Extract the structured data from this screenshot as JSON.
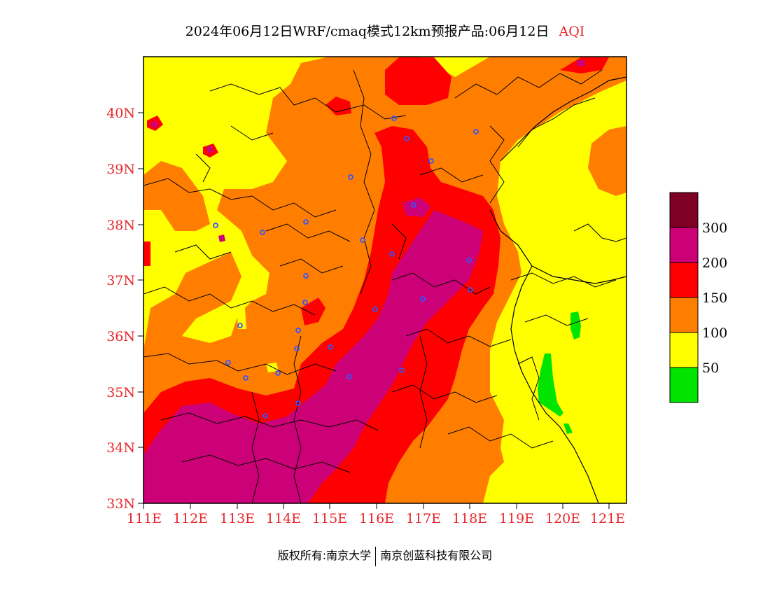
{
  "title": {
    "main": "2024年06月12日WRF/cmaq模式12km预报产品:06月12日",
    "variable": "AQI"
  },
  "axes": {
    "lat_labels": [
      "33N",
      "34N",
      "35N",
      "36N",
      "37N",
      "38N",
      "39N",
      "40N"
    ],
    "lon_labels": [
      "111E",
      "112E",
      "113E",
      "114E",
      "115E",
      "116E",
      "117E",
      "118E",
      "119E",
      "120E",
      "121E"
    ],
    "lat_range": [
      33,
      41
    ],
    "lon_range": [
      111,
      121.4
    ]
  },
  "legend": {
    "labels": [
      "50",
      "100",
      "150",
      "200",
      "300"
    ],
    "colors": [
      "#00e400",
      "#ffff00",
      "#ff7e00",
      "#ff0000",
      "#cc0077",
      "#7e0023"
    ]
  },
  "footer": {
    "left": "版权所有:南京大学",
    "right": "南京创蓝科技有限公司"
  },
  "colors": {
    "axis_text": "#e8262b",
    "good": "#00e400",
    "moderate": "#ffff00",
    "usg": "#ff7e00",
    "unhealthy": "#ff0000",
    "very_unhealthy": "#cc0077",
    "hazardous": "#7e0023"
  }
}
